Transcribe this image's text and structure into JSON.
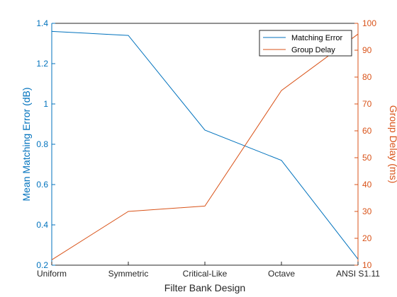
{
  "chart_data": {
    "type": "line",
    "xlabel": "Filter Bank Design",
    "categories": [
      "Uniform",
      "Symmetric",
      "Critical-Like",
      "Octave",
      "ANSI S1.11"
    ],
    "left_axis": {
      "label": "Mean Matching Error (dB)",
      "ylim": [
        0.2,
        1.4
      ],
      "ticks": [
        "0.2",
        "0.4",
        "0.6",
        "0.8",
        "1",
        "1.2",
        "1.4"
      ],
      "color": "#0072BD"
    },
    "right_axis": {
      "label": "Group Delay (ms)",
      "ylim": [
        10,
        100
      ],
      "ticks": [
        "10",
        "20",
        "30",
        "40",
        "50",
        "60",
        "70",
        "80",
        "90",
        "100"
      ],
      "color": "#D95319"
    },
    "series": [
      {
        "name": "Matching Error",
        "axis": "left",
        "color": "#0072BD",
        "values": [
          1.36,
          1.34,
          0.87,
          0.72,
          0.23
        ]
      },
      {
        "name": "Group Delay",
        "axis": "right",
        "color": "#D95319",
        "values": [
          12,
          30,
          32,
          75,
          96
        ]
      }
    ],
    "legend_position": "top-right",
    "grid": false
  }
}
